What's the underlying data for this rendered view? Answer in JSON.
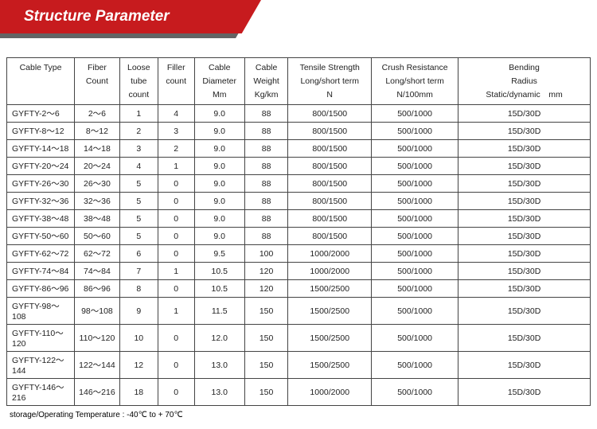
{
  "header": {
    "title": "Structure Parameter"
  },
  "table": {
    "columns": [
      {
        "lines": [
          "Cable Type"
        ],
        "class": "col0"
      },
      {
        "lines": [
          "Fiber",
          "Count"
        ],
        "class": "col1"
      },
      {
        "lines": [
          "Loose",
          "tube",
          "count"
        ],
        "class": "col2"
      },
      {
        "lines": [
          "Filler",
          "count"
        ],
        "class": "col3"
      },
      {
        "lines": [
          "Cable",
          "Diameter",
          "Mm"
        ],
        "class": "col4"
      },
      {
        "lines": [
          "Cable",
          "Weight",
          "Kg/km"
        ],
        "class": "col5"
      },
      {
        "lines": [
          "Tensile Strength",
          "Long/short term",
          "N"
        ],
        "class": "col6"
      },
      {
        "lines": [
          "Crush Resistance",
          "Long/short term",
          "N/100mm"
        ],
        "class": "col7"
      },
      {
        "lines": [
          "Bending",
          "Radius",
          "Static/dynamic mm"
        ],
        "class": "col8"
      }
    ],
    "rows": [
      [
        "GYFTY-2～6",
        "2～6",
        "1",
        "4",
        "9.0",
        "88",
        "800/1500",
        "500/1000",
        "15D/30D"
      ],
      [
        "GYFTY-8～12",
        "8～12",
        "2",
        "3",
        "9.0",
        "88",
        "800/1500",
        "500/1000",
        "15D/30D"
      ],
      [
        "GYFTY-14～18",
        "14～18",
        "3",
        "2",
        "9.0",
        "88",
        "800/1500",
        "500/1000",
        "15D/30D"
      ],
      [
        "GYFTY-20～24",
        "20～24",
        "4",
        "1",
        "9.0",
        "88",
        "800/1500",
        "500/1000",
        "15D/30D"
      ],
      [
        "GYFTY-26～30",
        "26～30",
        "5",
        "0",
        "9.0",
        "88",
        "800/1500",
        "500/1000",
        "15D/30D"
      ],
      [
        "GYFTY-32～36",
        "32～36",
        "5",
        "0",
        "9.0",
        "88",
        "800/1500",
        "500/1000",
        "15D/30D"
      ],
      [
        "GYFTY-38～48",
        "38～48",
        "5",
        "0",
        "9.0",
        "88",
        "800/1500",
        "500/1000",
        "15D/30D"
      ],
      [
        "GYFTY-50～60",
        "50～60",
        "5",
        "0",
        "9.0",
        "88",
        "800/1500",
        "500/1000",
        "15D/30D"
      ],
      [
        "GYFTY-62～72",
        "62～72",
        "6",
        "0",
        "9.5",
        "100",
        "1000/2000",
        "500/1000",
        "15D/30D"
      ],
      [
        "GYFTY-74～84",
        "74～84",
        "7",
        "1",
        "10.5",
        "120",
        "1000/2000",
        "500/1000",
        "15D/30D"
      ],
      [
        "GYFTY-86～96",
        "86～96",
        "8",
        "0",
        "10.5",
        "120",
        "1500/2500",
        "500/1000",
        "15D/30D"
      ],
      [
        "GYFTY-98～108",
        "98～108",
        "9",
        "1",
        "11.5",
        "150",
        "1500/2500",
        "500/1000",
        "15D/30D"
      ],
      [
        "GYFTY-110～120",
        "110～120",
        "10",
        "0",
        "12.0",
        "150",
        "1500/2500",
        "500/1000",
        "15D/30D"
      ],
      [
        "GYFTY-122～144",
        "122～144",
        "12",
        "0",
        "13.0",
        "150",
        "1500/2500",
        "500/1000",
        "15D/30D"
      ],
      [
        "GYFTY-146～216",
        "146～216",
        "18",
        "0",
        "13.0",
        "150",
        "1000/2000",
        "500/1000",
        "15D/30D"
      ]
    ]
  },
  "footnote": "storage/Operating Temperature : -40℃ to + 70℃"
}
